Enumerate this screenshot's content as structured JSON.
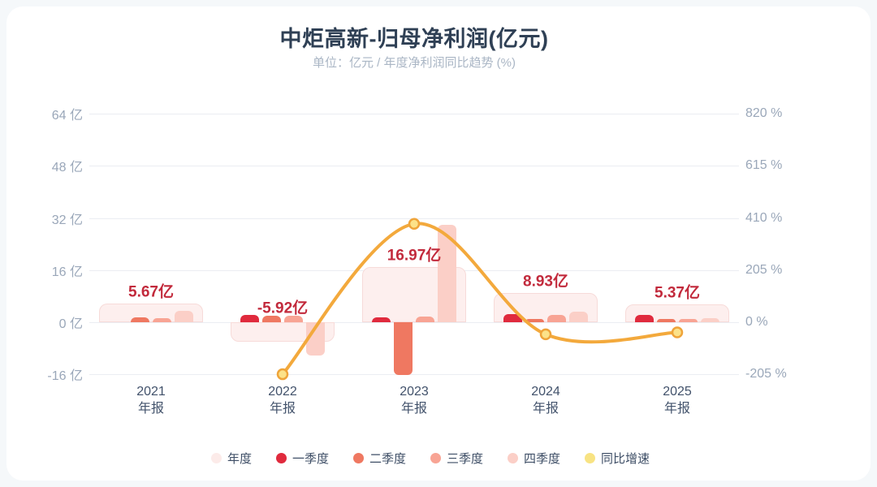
{
  "header": {
    "title": "中炬高新-归母净利润(亿元)",
    "subtitle": "单位：亿元 / 年度净利润同比趋势 (%)"
  },
  "chart_data": {
    "type": "bar",
    "title": "中炬高新-归母净利润(亿元)",
    "subtitle": "单位：亿元 / 年度净利润同比趋势 (%)",
    "categories": [
      "2021",
      "2022",
      "2023",
      "2024",
      "2025"
    ],
    "category_suffix": "年报",
    "left_axis": {
      "unit": "亿",
      "tick_values": [
        64,
        48,
        32,
        16,
        0,
        -16
      ],
      "tick_labels": [
        "64 亿",
        "48 亿",
        "32 亿",
        "16 亿",
        "0 亿",
        "-16 亿"
      ],
      "ylim": [
        -16,
        64
      ]
    },
    "right_axis": {
      "unit": "%",
      "tick_values": [
        820,
        615,
        410,
        205,
        0,
        -205
      ],
      "tick_labels": [
        "820 %",
        "615 %",
        "410 %",
        "205 %",
        "0 %",
        "-205 %"
      ],
      "ylim": [
        -205,
        820
      ]
    },
    "grid": true,
    "legend_position": "bottom",
    "series": [
      {
        "name": "年度",
        "type": "bar",
        "role": "annual",
        "color": "#fdefee",
        "border_color": "#f7dbd9",
        "values": [
          5.67,
          -5.92,
          16.97,
          8.93,
          5.37
        ],
        "data_labels": [
          "5.67亿",
          "-5.92亿",
          "16.97亿",
          "8.93亿",
          "5.37亿"
        ]
      },
      {
        "name": "一季度",
        "type": "bar",
        "role": "quarter",
        "color": "#e02a3d",
        "values": [
          null,
          2.2,
          1.5,
          2.5,
          2.3
        ]
      },
      {
        "name": "二季度",
        "type": "bar",
        "role": "quarter",
        "color": "#ef7861",
        "values": [
          1.4,
          2.0,
          -16.2,
          1.1,
          0.9
        ]
      },
      {
        "name": "三季度",
        "type": "bar",
        "role": "quarter",
        "color": "#f8a494",
        "values": [
          1.2,
          1.9,
          1.7,
          2.2,
          1.1
        ]
      },
      {
        "name": "四季度",
        "type": "bar",
        "role": "quarter",
        "color": "#fbcfc7",
        "values": [
          3.5,
          -10.3,
          29.9,
          3.2,
          1.3
        ]
      },
      {
        "name": "同比增速",
        "type": "line",
        "role": "growth",
        "color": "#f3a93c",
        "marker_fill": "#fce289",
        "marker_stroke": "#efa43a",
        "values": [
          null,
          -204.4,
          386.7,
          -47.4,
          -39.9
        ]
      }
    ],
    "value_label_color": "#c22a3c",
    "legend": [
      {
        "label": "年度",
        "color": "#fcebe9"
      },
      {
        "label": "一季度",
        "color": "#e02a3d"
      },
      {
        "label": "二季度",
        "color": "#ef7861"
      },
      {
        "label": "三季度",
        "color": "#f8a494"
      },
      {
        "label": "四季度",
        "color": "#fbcfc7"
      },
      {
        "label": "同比增速",
        "color": "#f8e383"
      }
    ]
  }
}
